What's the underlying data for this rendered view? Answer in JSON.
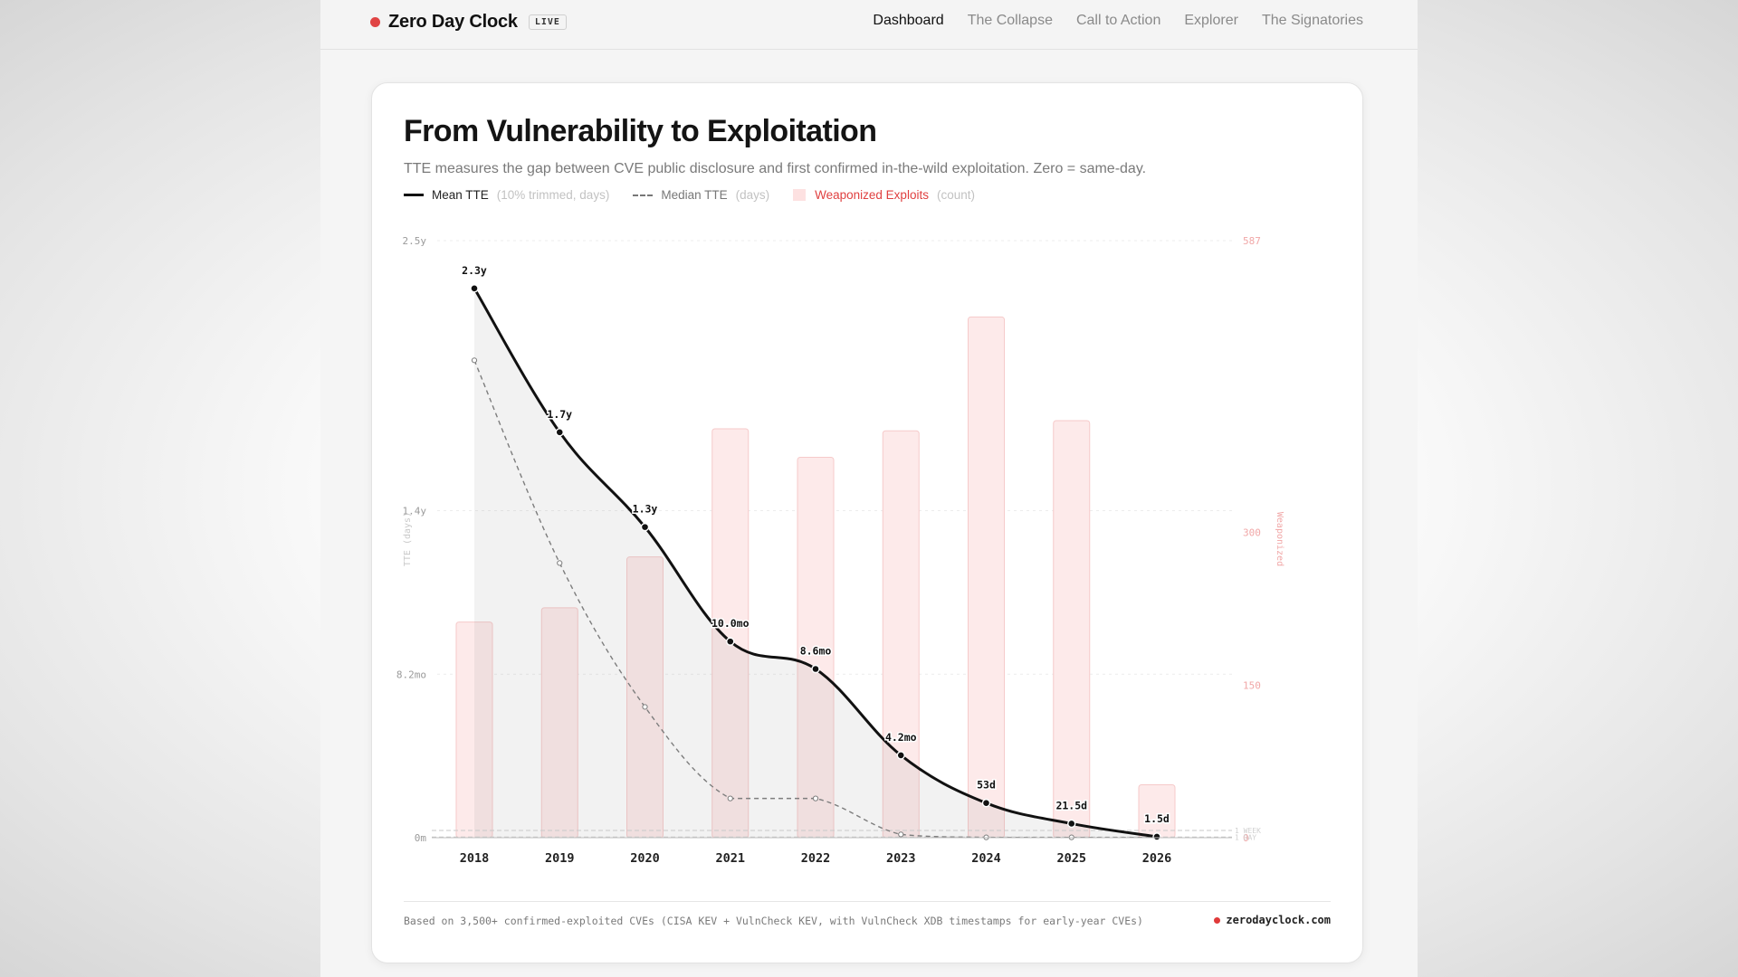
{
  "brand": {
    "name": "Zero Day Clock",
    "badge": "LIVE",
    "dot_color": "#e04444"
  },
  "nav": {
    "items": [
      {
        "label": "Dashboard",
        "active": true
      },
      {
        "label": "The Collapse",
        "active": false
      },
      {
        "label": "Call to Action",
        "active": false
      },
      {
        "label": "Explorer",
        "active": false
      },
      {
        "label": "The Signatories",
        "active": false
      }
    ]
  },
  "card": {
    "title": "From Vulnerability to Exploitation",
    "subtitle": "TTE measures the gap between CVE public disclosure and first confirmed in-the-wild exploitation. Zero = same-day.",
    "legend": {
      "mean": {
        "label": "Mean TTE",
        "unit": "(10% trimmed, days)"
      },
      "median": {
        "label": "Median TTE",
        "unit": "(days)"
      },
      "exploits": {
        "label": "Weaponized Exploits",
        "unit": "(count)"
      }
    },
    "footnote": "Based on 3,500+ confirmed-exploited CVEs (CISA KEV + VulnCheck KEV, with VulnCheck XDB timestamps for early-year CVEs)",
    "site": "zerodayclock.com"
  },
  "chart_data": {
    "type": "line",
    "x": [
      "2018",
      "2019",
      "2020",
      "2021",
      "2022",
      "2023",
      "2024",
      "2025",
      "2026"
    ],
    "series": [
      {
        "name": "Mean TTE",
        "unit": "days",
        "values": [
          840,
          620,
          475,
          300,
          258,
          126,
          53,
          21.5,
          1.5
        ],
        "labels": [
          "2.3y",
          "1.7y",
          "1.3y",
          "10.0mo",
          "8.6mo",
          "4.2mo",
          "53d",
          "21.5d",
          "1.5d"
        ]
      },
      {
        "name": "Median TTE",
        "unit": "days",
        "values": [
          730,
          420,
          200,
          60,
          60,
          5,
          0.5,
          0.5,
          0.5
        ]
      },
      {
        "name": "Weaponized Exploits",
        "unit": "count",
        "values": [
          212,
          226,
          276,
          402,
          374,
          400,
          512,
          410,
          52
        ]
      }
    ],
    "y_left": {
      "label": "TTE (days)",
      "ticks": [
        {
          "value": 0,
          "label": "0m"
        },
        {
          "value": 250,
          "label": "8.2mo"
        },
        {
          "value": 500,
          "label": "1.4y"
        },
        {
          "value": 913,
          "label": "2.5y"
        }
      ],
      "ylim": [
        0,
        913
      ],
      "ref_lines": [
        {
          "value": 7,
          "label": "1 WEEK"
        },
        {
          "value": 1,
          "label": "1 DAY"
        }
      ]
    },
    "y_right": {
      "label": "Weaponized",
      "ticks": [
        0,
        150,
        300,
        587
      ],
      "ylim": [
        0,
        587
      ]
    },
    "colors": {
      "mean": "#111111",
      "median": "#7d7d7d",
      "bar_fill": "#fdeaea",
      "bar_stroke": "#f6caca",
      "right_axis": "#f1a7a7"
    },
    "grid": true
  }
}
